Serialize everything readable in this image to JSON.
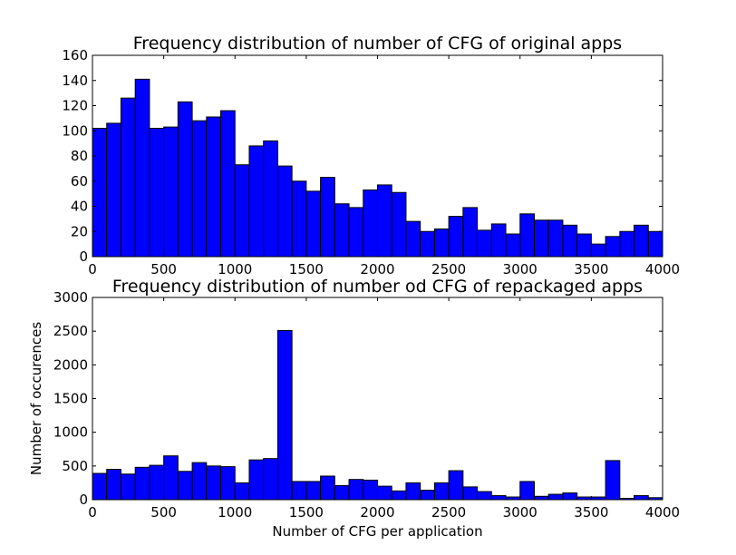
{
  "chart_data": [
    {
      "type": "bar",
      "title": "Frequency distribution of number of CFG of original apps",
      "xlabel": "",
      "ylabel": "",
      "xlim": [
        0,
        4000
      ],
      "ylim": [
        0,
        160
      ],
      "xticks": [
        0,
        500,
        1000,
        1500,
        2000,
        2500,
        3000,
        3500,
        4000
      ],
      "yticks": [
        0,
        20,
        40,
        60,
        80,
        100,
        120,
        140,
        160
      ],
      "bin_width": 100,
      "bar_color": "#0000ff",
      "bins_start": [
        0,
        100,
        200,
        300,
        400,
        500,
        600,
        700,
        800,
        900,
        1000,
        1100,
        1200,
        1300,
        1400,
        1500,
        1600,
        1700,
        1800,
        1900,
        2000,
        2100,
        2200,
        2300,
        2400,
        2500,
        2600,
        2700,
        2800,
        2900,
        3000,
        3100,
        3200,
        3300,
        3400,
        3500,
        3600,
        3700,
        3800,
        3900
      ],
      "values": [
        102,
        106,
        126,
        141,
        102,
        103,
        123,
        108,
        111,
        116,
        73,
        88,
        92,
        72,
        60,
        52,
        63,
        42,
        39,
        53,
        57,
        51,
        28,
        20,
        22,
        32,
        39,
        21,
        26,
        18,
        34,
        29,
        29,
        25,
        18,
        10,
        16,
        20,
        25,
        20
      ]
    },
    {
      "type": "bar",
      "title": "Frequency distribution of number od CFG of repackaged apps",
      "xlabel": "Number of CFG per application",
      "ylabel": "Number of occurences",
      "xlim": [
        0,
        4000
      ],
      "ylim": [
        0,
        3000
      ],
      "xticks": [
        0,
        500,
        1000,
        1500,
        2000,
        2500,
        3000,
        3500,
        4000
      ],
      "yticks": [
        0,
        500,
        1000,
        1500,
        2000,
        2500,
        3000
      ],
      "bin_width": 100,
      "bar_color": "#0000ff",
      "bins_start": [
        0,
        100,
        200,
        300,
        400,
        500,
        600,
        700,
        800,
        900,
        1000,
        1100,
        1200,
        1300,
        1400,
        1500,
        1600,
        1700,
        1800,
        1900,
        2000,
        2100,
        2200,
        2300,
        2400,
        2500,
        2600,
        2700,
        2800,
        2900,
        3000,
        3100,
        3200,
        3300,
        3400,
        3500,
        3600,
        3700,
        3800,
        3900
      ],
      "values": [
        390,
        450,
        380,
        480,
        510,
        650,
        420,
        550,
        500,
        490,
        250,
        590,
        610,
        2510,
        270,
        270,
        350,
        210,
        300,
        290,
        200,
        130,
        250,
        140,
        250,
        430,
        190,
        120,
        60,
        40,
        270,
        50,
        80,
        100,
        40,
        40,
        580,
        20,
        60,
        30
      ]
    }
  ]
}
